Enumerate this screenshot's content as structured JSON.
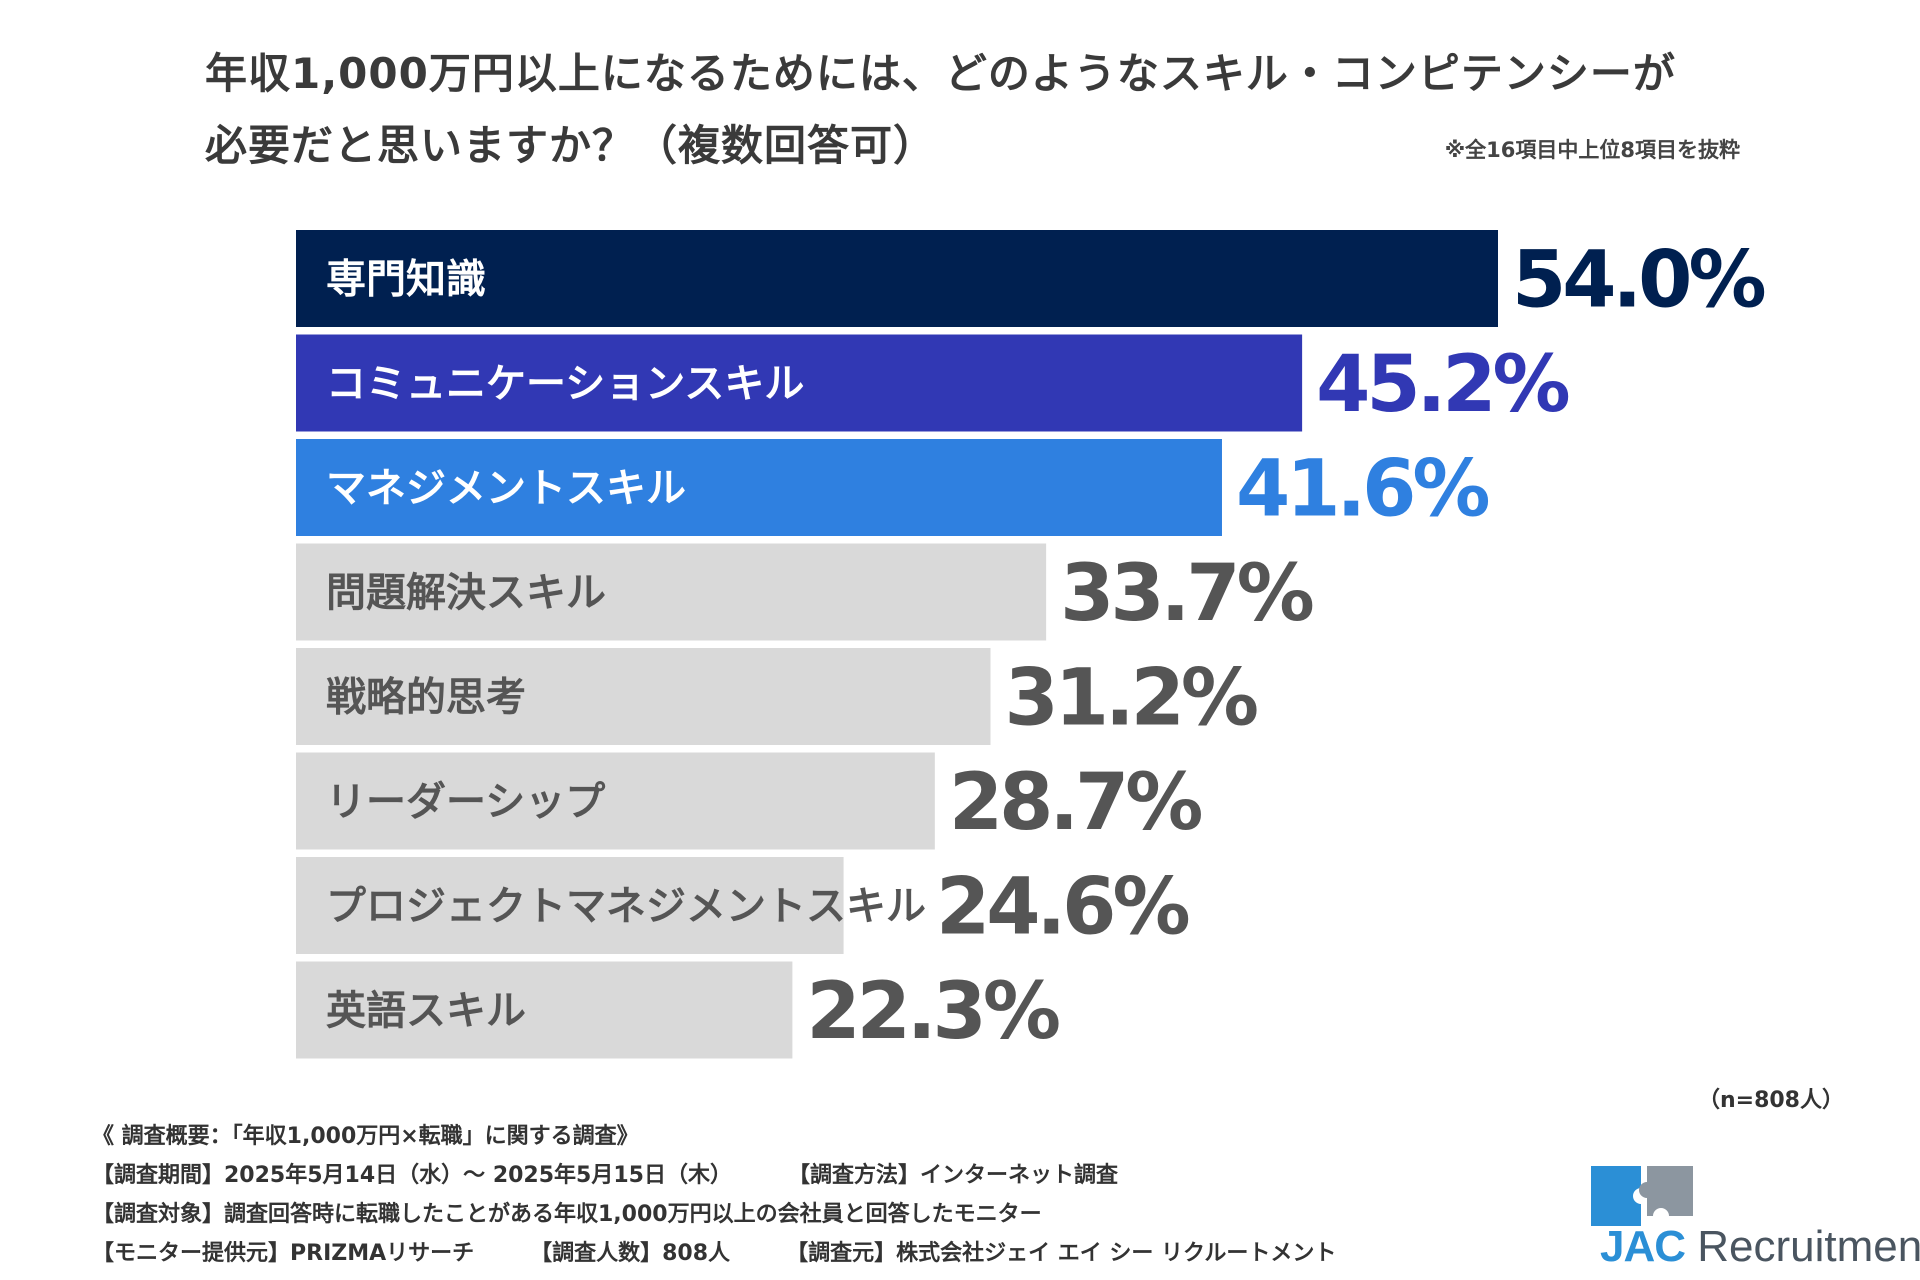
{
  "title": {
    "line1": "年収1,000万円以上になるためには、どのようなスキル・コンピテンシーが",
    "line2": "必要だと思いますか？（複数回答可）"
  },
  "note": "※全16項目中上位8項目を抜粋",
  "chart_data": {
    "type": "bar",
    "orientation": "horizontal",
    "title": "年収1,000万円以上になるためには、どのようなスキル・コンピテンシーが必要だと思いますか？（複数回答可）",
    "categories": [
      "専門知識",
      "コミュニケーションスキル",
      "マネジメントスキル",
      "問題解決スキル",
      "戦略的思考",
      "リーダーシップ",
      "プロジェクトマネジメントスキル",
      "英語スキル"
    ],
    "values": [
      54.0,
      45.2,
      41.6,
      33.7,
      31.2,
      28.7,
      24.6,
      22.3
    ],
    "value_labels": [
      "54.0%",
      "45.2%",
      "41.6%",
      "33.7%",
      "31.2%",
      "28.7%",
      "24.6%",
      "22.3%"
    ],
    "unit": "%",
    "xlim": [
      0,
      54.0
    ],
    "colors": [
      "#002050",
      "#3138b4",
      "#2f80e0",
      "#d9d9d9",
      "#d9d9d9",
      "#d9d9d9",
      "#d9d9d9",
      "#d9d9d9"
    ],
    "label_colors": [
      "#ffffff",
      "#ffffff",
      "#ffffff",
      "#555555",
      "#555555",
      "#555555",
      "#555555",
      "#555555"
    ],
    "value_colors": [
      "#002050",
      "#3138b4",
      "#2f80e0",
      "#555555",
      "#555555",
      "#555555",
      "#555555",
      "#555555"
    ]
  },
  "sample_note": "（n=808人）",
  "footer": {
    "summary": "《 調査概要：「年収1,000万円×転職」に関する調査》",
    "period": "【調査期間】2025年5月14日（水）～ 2025年5月15日（木）",
    "method": "【調査方法】インターネット調査",
    "target": "【調査対象】調査回答時に転職したことがある年収1,000万円以上の会社員と回答したモニター",
    "provider": "【モニター提供元】PRIZMAリサーチ",
    "count": "【調査人数】808人",
    "source": "【調査元】株式会社ジェイ エイ シー リクルートメント"
  },
  "logo": {
    "jac": "JAC",
    "word": "Recruitment",
    "blue": "#2b8fd6",
    "gray": "#8c96a0"
  }
}
